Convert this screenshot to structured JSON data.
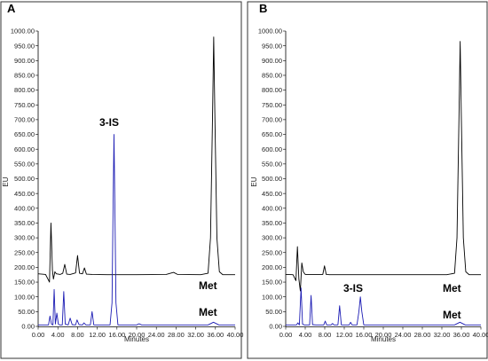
{
  "chart_data": [
    {
      "type": "line",
      "panel_label": "A",
      "xlabel": "Minutes",
      "ylabel": "EU",
      "xlim": [
        0,
        40
      ],
      "ylim": [
        0,
        1000
      ],
      "x_ticks": [
        "0.00",
        "4.00",
        "8.00",
        "12.00",
        "16.00",
        "20.00",
        "24.00",
        "28.00",
        "32.00",
        "36.00",
        "40.00"
      ],
      "y_ticks": [
        "0.00",
        "50.00",
        "100.00",
        "150.00",
        "200.00",
        "250.00",
        "300.00",
        "350.00",
        "400.00",
        "450.00",
        "500.00",
        "550.00",
        "600.00",
        "650.00",
        "700.00",
        "750.00",
        "800.00",
        "850.00",
        "900.00",
        "950.00",
        "1000.00"
      ],
      "series": [
        {
          "color": "#000000",
          "baseline": 175,
          "points": [
            [
              0,
              178
            ],
            [
              1.5,
              176
            ],
            [
              2.3,
              150
            ],
            [
              2.6,
              350
            ],
            [
              2.9,
              190
            ],
            [
              3.1,
              160
            ],
            [
              3.4,
              185
            ],
            [
              3.7,
              178
            ],
            [
              4.5,
              176
            ],
            [
              5.0,
              180
            ],
            [
              5.4,
              210
            ],
            [
              5.8,
              177
            ],
            [
              6.5,
              176
            ],
            [
              7.6,
              181
            ],
            [
              8.0,
              240
            ],
            [
              8.4,
              180
            ],
            [
              9.0,
              178
            ],
            [
              9.4,
              198
            ],
            [
              9.8,
              177
            ],
            [
              11,
              176
            ],
            [
              14,
              175
            ],
            [
              20,
              175
            ],
            [
              26,
              176
            ],
            [
              27.5,
              183
            ],
            [
              28.3,
              176
            ],
            [
              33,
              175
            ],
            [
              34.5,
              180
            ],
            [
              35.0,
              300
            ],
            [
              35.4,
              700
            ],
            [
              35.65,
              980
            ],
            [
              35.9,
              700
            ],
            [
              36.3,
              300
            ],
            [
              36.8,
              185
            ],
            [
              37.5,
              175
            ],
            [
              40,
              175
            ]
          ]
        },
        {
          "color": "#1c1cb4",
          "baseline": 5,
          "points": [
            [
              0,
              5
            ],
            [
              2.1,
              5
            ],
            [
              2.4,
              35
            ],
            [
              2.7,
              8
            ],
            [
              3.0,
              5
            ],
            [
              3.25,
              125
            ],
            [
              3.5,
              8
            ],
            [
              3.8,
              45
            ],
            [
              4.1,
              8
            ],
            [
              4.4,
              5
            ],
            [
              4.9,
              5
            ],
            [
              5.2,
              118
            ],
            [
              5.5,
              8
            ],
            [
              6.1,
              5
            ],
            [
              6.5,
              28
            ],
            [
              6.9,
              6
            ],
            [
              7.6,
              5
            ],
            [
              7.9,
              22
            ],
            [
              8.3,
              6
            ],
            [
              9.0,
              5
            ],
            [
              9.3,
              12
            ],
            [
              9.7,
              5
            ],
            [
              10.6,
              5
            ],
            [
              10.95,
              50
            ],
            [
              11.3,
              5
            ],
            [
              14.6,
              5
            ],
            [
              15.0,
              80
            ],
            [
              15.2,
              380
            ],
            [
              15.4,
              650
            ],
            [
              15.6,
              380
            ],
            [
              15.8,
              80
            ],
            [
              16.2,
              5
            ],
            [
              20,
              5
            ],
            [
              20.5,
              9
            ],
            [
              21,
              5
            ],
            [
              34.5,
              5
            ],
            [
              35.6,
              14
            ],
            [
              36.7,
              5
            ],
            [
              40,
              5
            ]
          ]
        }
      ],
      "annotations": [
        {
          "text": "3-IS",
          "x": 15.4,
          "y": 650
        },
        {
          "text": "Met",
          "x": 35.6,
          "y": 180
        },
        {
          "text": "Met",
          "x": 35.6,
          "y": 14
        }
      ]
    },
    {
      "type": "line",
      "panel_label": "B",
      "xlabel": "Minutes",
      "ylabel": "EU",
      "xlim": [
        0,
        40
      ],
      "ylim": [
        0,
        1000
      ],
      "x_ticks": [
        "0.00",
        "4.00",
        "8.00",
        "12.00",
        "16.00",
        "20.00",
        "24.00",
        "28.00",
        "32.00",
        "36.00",
        "40.00"
      ],
      "y_ticks": [
        "0.00",
        "50.00",
        "100.00",
        "150.00",
        "200.00",
        "250.00",
        "300.00",
        "350.00",
        "400.00",
        "450.00",
        "500.00",
        "550.00",
        "600.00",
        "650.00",
        "700.00",
        "750.00",
        "800.00",
        "850.00",
        "900.00",
        "950.00",
        "1000.00"
      ],
      "series": [
        {
          "color": "#000000",
          "baseline": 175,
          "points": [
            [
              0,
              176
            ],
            [
              1.5,
              175
            ],
            [
              2.1,
              155
            ],
            [
              2.4,
              270
            ],
            [
              2.7,
              160
            ],
            [
              3.0,
              120
            ],
            [
              3.3,
              215
            ],
            [
              3.6,
              185
            ],
            [
              4.0,
              176
            ],
            [
              5.0,
              176
            ],
            [
              7.6,
              176
            ],
            [
              7.95,
              205
            ],
            [
              8.3,
              176
            ],
            [
              9.0,
              175
            ],
            [
              20,
              175
            ],
            [
              33,
              175
            ],
            [
              34.6,
              180
            ],
            [
              35.1,
              300
            ],
            [
              35.5,
              700
            ],
            [
              35.75,
              965
            ],
            [
              36.0,
              700
            ],
            [
              36.4,
              300
            ],
            [
              36.9,
              185
            ],
            [
              37.6,
              175
            ],
            [
              40,
              175
            ]
          ]
        },
        {
          "color": "#1c1cb4",
          "baseline": 5,
          "points": [
            [
              0,
              5
            ],
            [
              2.2,
              5
            ],
            [
              2.5,
              12
            ],
            [
              2.8,
              5
            ],
            [
              3.15,
              130
            ],
            [
              3.45,
              8
            ],
            [
              3.8,
              5
            ],
            [
              4.9,
              5
            ],
            [
              5.2,
              105
            ],
            [
              5.5,
              6
            ],
            [
              6.2,
              5
            ],
            [
              7.8,
              5
            ],
            [
              8.1,
              18
            ],
            [
              8.4,
              5
            ],
            [
              9.3,
              5
            ],
            [
              9.6,
              10
            ],
            [
              9.9,
              5
            ],
            [
              10.7,
              5
            ],
            [
              11.05,
              70
            ],
            [
              11.4,
              5
            ],
            [
              13.0,
              5
            ],
            [
              13.3,
              14
            ],
            [
              13.6,
              5
            ],
            [
              14.6,
              5
            ],
            [
              15.0,
              50
            ],
            [
              15.3,
              100
            ],
            [
              15.6,
              50
            ],
            [
              16.0,
              5
            ],
            [
              34.6,
              5
            ],
            [
              35.7,
              14
            ],
            [
              36.8,
              5
            ],
            [
              40,
              5
            ]
          ]
        }
      ],
      "annotations": [
        {
          "text": "3-IS",
          "x": 15.3,
          "y": 100
        },
        {
          "text": "Met",
          "x": 35.7,
          "y": 180
        },
        {
          "text": "Met",
          "x": 35.7,
          "y": 14
        }
      ]
    }
  ]
}
